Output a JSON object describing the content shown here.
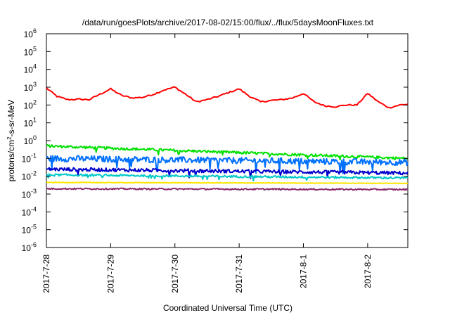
{
  "chart_data": {
    "type": "line",
    "title": "/data/run/goesPlots/archive/2017-08-02/15:00/flux/../flux/5daysMoonFluxes.txt",
    "xlabel": "Coordinated Universal Time (UTC)",
    "ylabel_parts": [
      "protons/cm",
      "2",
      "-s-sr-MeV"
    ],
    "y_scale": "log",
    "ylim": [
      1e-06,
      1000000.0
    ],
    "y_ticks": [
      {
        "base": "10",
        "exp": "-6",
        "value": 1e-06
      },
      {
        "base": "10",
        "exp": "-5",
        "value": 1e-05
      },
      {
        "base": "10",
        "exp": "-4",
        "value": 0.0001
      },
      {
        "base": "10",
        "exp": "-3",
        "value": 0.001
      },
      {
        "base": "10",
        "exp": "-2",
        "value": 0.01
      },
      {
        "base": "10",
        "exp": "-1",
        "value": 0.1
      },
      {
        "base": "10",
        "exp": "0",
        "value": 1
      },
      {
        "base": "10",
        "exp": "1",
        "value": 10
      },
      {
        "base": "10",
        "exp": "2",
        "value": 100
      },
      {
        "base": "10",
        "exp": "3",
        "value": 1000
      },
      {
        "base": "10",
        "exp": "4",
        "value": 10000
      },
      {
        "base": "10",
        "exp": "5",
        "value": 100000
      },
      {
        "base": "10",
        "exp": "6",
        "value": 1000000
      }
    ],
    "xlim": [
      "2017-07-28 00:00",
      "2017-08-02 15:00"
    ],
    "x_ticks": [
      "2017-7-28",
      "2017-7-29",
      "2017-7-30",
      "2017-7-31",
      "2017-8-1",
      "2017-8-2"
    ],
    "grid": false,
    "legend": "none",
    "series": [
      {
        "color": "#ff0000",
        "x": [
          "2017-07-28 00:00",
          "2017-07-28 04:00",
          "2017-07-28 08:00",
          "2017-07-28 12:00",
          "2017-07-28 16:00",
          "2017-07-28 20:00",
          "2017-07-29 00:00",
          "2017-07-29 04:00",
          "2017-07-29 08:00",
          "2017-07-29 12:00",
          "2017-07-29 16:00",
          "2017-07-29 20:00",
          "2017-07-30 00:00",
          "2017-07-30 04:00",
          "2017-07-30 08:00",
          "2017-07-30 12:00",
          "2017-07-30 16:00",
          "2017-07-30 20:00",
          "2017-07-31 00:00",
          "2017-07-31 04:00",
          "2017-07-31 08:00",
          "2017-07-31 12:00",
          "2017-07-31 16:00",
          "2017-07-31 20:00",
          "2017-08-01 00:00",
          "2017-08-01 04:00",
          "2017-08-01 08:00",
          "2017-08-01 12:00",
          "2017-08-01 16:00",
          "2017-08-01 20:00",
          "2017-08-02 00:00",
          "2017-08-02 04:00",
          "2017-08-02 08:00",
          "2017-08-02 12:00",
          "2017-08-02 15:00"
        ],
        "y": [
          900,
          300,
          200,
          210,
          200,
          400,
          800,
          350,
          250,
          270,
          400,
          700,
          1000,
          400,
          150,
          200,
          300,
          500,
          800,
          300,
          150,
          180,
          200,
          250,
          450,
          150,
          90,
          80,
          100,
          100,
          450,
          150,
          70,
          100,
          110
        ]
      },
      {
        "color": "#00e000",
        "y_start": 0.5,
        "y_end": 0.1,
        "noise": 0.15
      },
      {
        "color": "#0070ff",
        "y_start": 0.1,
        "y_end": 0.06,
        "noise": 0.35
      },
      {
        "color": "#0000cc",
        "y_start": 0.025,
        "y_end": 0.015,
        "noise": 0.2
      },
      {
        "color": "#00c8c8",
        "y_start": 0.012,
        "y_end": 0.008,
        "noise": 0.12
      },
      {
        "color": "#ffe600",
        "y_start": 0.0045,
        "y_end": 0.004,
        "noise": 0.03
      },
      {
        "color": "#8b2a6b",
        "y_start": 0.002,
        "y_end": 0.0018,
        "noise": 0.08
      }
    ]
  }
}
